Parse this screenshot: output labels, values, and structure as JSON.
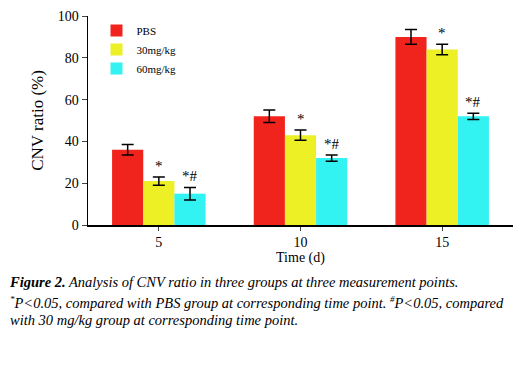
{
  "chart_data": {
    "type": "bar",
    "x_label": "Time (d)",
    "y_label": "CNV ratio (%)",
    "categories": [
      "5",
      "10",
      "15"
    ],
    "series": [
      {
        "name": "PBS",
        "color": "#f0241c",
        "values": [
          36,
          52,
          90
        ],
        "errors": [
          2.5,
          3,
          3.5
        ],
        "annotations": [
          null,
          null,
          null
        ]
      },
      {
        "name": "30mg/kg",
        "color": "#ecf024",
        "values": [
          21,
          43,
          84
        ],
        "errors": [
          2,
          2.5,
          2.5
        ],
        "annotations": [
          "*",
          "*",
          "*"
        ]
      },
      {
        "name": "60mg/kg",
        "color": "#33f2f2",
        "values": [
          15,
          32,
          52
        ],
        "errors": [
          3,
          1.5,
          1.5
        ],
        "annotations": [
          "*#",
          "*#",
          "*#"
        ]
      }
    ],
    "ylim": [
      0,
      100
    ],
    "yticks": [
      0,
      20,
      40,
      60,
      80,
      100
    ],
    "grid": false,
    "legend": "upper left",
    "caption": {
      "label": "Figure 2.",
      "text": "Analysis of CNV ratio in three groups at three measurement points.",
      "notes": [
        {
          "mark": "*",
          "text": "P<0.05, compared with PBS group at corresponding time point."
        },
        {
          "mark": "#",
          "text": "P<0.05, compared with 30 mg/kg group at corresponding time point."
        }
      ]
    }
  }
}
